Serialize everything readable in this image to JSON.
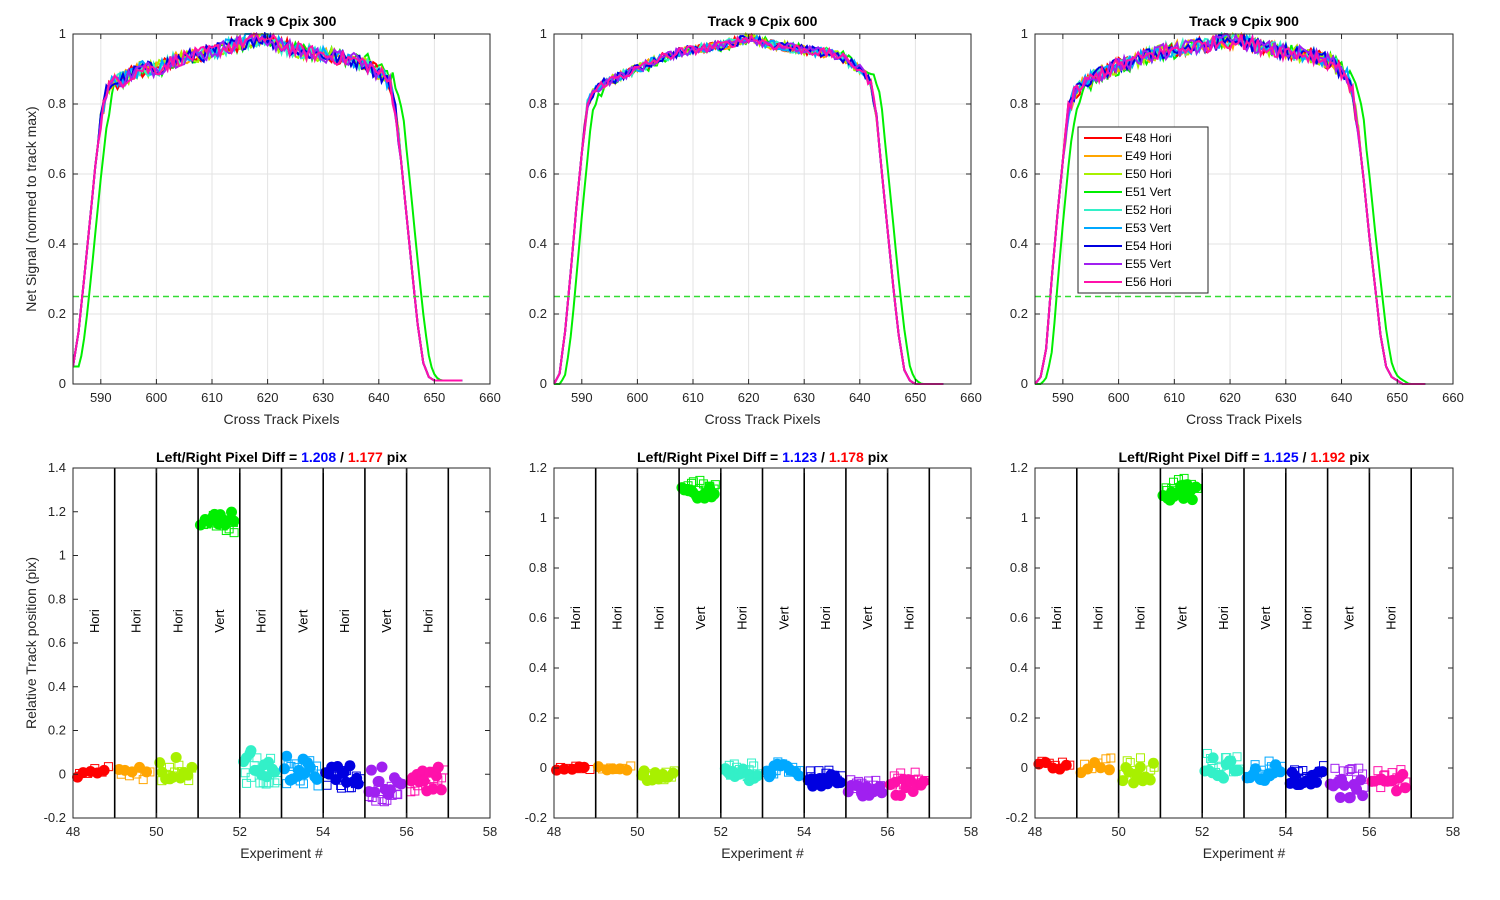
{
  "colors": {
    "E48": "#ff0000",
    "E49": "#ffa500",
    "E50": "#a8f000",
    "E51": "#00ee00",
    "E52": "#33f0c8",
    "E53": "#00a8ff",
    "E54": "#0000e0",
    "E55": "#a020f0",
    "E56": "#ff11aa",
    "threshold": "#33dd33",
    "diff_left": "#0000ff",
    "diff_right": "#ff0000"
  },
  "legend": {
    "placement": "inside, upper-left of top-right panel",
    "entries": [
      "E48 Hori",
      "E49 Hori",
      "E50 Hori",
      "E51 Vert",
      "E52 Hori",
      "E53 Vert",
      "E54 Hori",
      "E55 Vert",
      "E56 Hori"
    ]
  },
  "chart_data": [
    {
      "type": "line",
      "panel": "profile-1",
      "title": "Track 9  Cpix 300",
      "xlabel": "Cross Track Pixels",
      "ylabel": "Net Signal (normed to track max)",
      "xlim": [
        585,
        660
      ],
      "ylim": [
        0,
        1
      ],
      "xticks": [
        590,
        600,
        610,
        620,
        630,
        640,
        650,
        660
      ],
      "yticks": [
        0,
        0.2,
        0.4,
        0.6,
        0.8,
        1
      ],
      "yticklabels": [
        "0",
        "0.2",
        "0.4",
        "0.6",
        "0.8",
        "1"
      ],
      "grid": true,
      "threshold": 0.25,
      "profile": {
        "x": [
          585,
          586,
          587,
          588,
          589,
          590,
          591,
          592,
          594,
          597,
          600,
          604,
          608,
          612,
          616,
          619,
          622,
          626,
          630,
          634,
          637,
          640,
          642,
          643,
          644,
          645,
          646,
          647,
          648,
          649,
          650,
          651,
          655
        ],
        "y": [
          0.05,
          0.15,
          0.3,
          0.46,
          0.62,
          0.75,
          0.84,
          0.86,
          0.87,
          0.9,
          0.9,
          0.93,
          0.94,
          0.96,
          0.98,
          0.99,
          0.97,
          0.95,
          0.94,
          0.93,
          0.92,
          0.89,
          0.86,
          0.78,
          0.64,
          0.48,
          0.32,
          0.17,
          0.06,
          0.02,
          0.01,
          0.01,
          0.01
        ]
      },
      "outlier_series": "E51 Vert",
      "outlier_shift": 1.2,
      "annotation": {
        "prefix": "Left/Right Pixel Diff = ",
        "left": "1.208",
        "sep": " / ",
        "right": "1.177",
        "suffix": " pix"
      }
    },
    {
      "type": "line",
      "panel": "profile-2",
      "title": "Track 9  Cpix 600",
      "xlabel": "Cross Track Pixels",
      "ylabel": "",
      "xlim": [
        585,
        660
      ],
      "ylim": [
        0,
        1
      ],
      "xticks": [
        590,
        600,
        610,
        620,
        630,
        640,
        650,
        660
      ],
      "yticks": [
        0,
        0.2,
        0.4,
        0.6,
        0.8,
        1
      ],
      "yticklabels": [
        "0",
        "0.2",
        "0.4",
        "0.6",
        "0.8",
        "1"
      ],
      "grid": true,
      "threshold": 0.25,
      "profile": {
        "x": [
          585,
          586,
          587,
          588,
          589,
          590,
          591,
          592,
          594,
          597,
          600,
          604,
          608,
          612,
          616,
          620,
          624,
          628,
          632,
          636,
          640,
          642,
          643,
          644,
          645,
          646,
          647,
          648,
          649,
          650,
          655
        ],
        "y": [
          0.0,
          0.03,
          0.15,
          0.32,
          0.5,
          0.66,
          0.8,
          0.83,
          0.86,
          0.88,
          0.9,
          0.93,
          0.95,
          0.96,
          0.97,
          0.99,
          0.97,
          0.96,
          0.95,
          0.94,
          0.9,
          0.86,
          0.76,
          0.6,
          0.44,
          0.28,
          0.14,
          0.04,
          0.01,
          0.0,
          0.0
        ]
      },
      "outlier_series": "E51 Vert",
      "outlier_shift": 1.12,
      "annotation": {
        "prefix": "Left/Right Pixel Diff = ",
        "left": "1.123",
        "sep": " / ",
        "right": "1.178",
        "suffix": " pix"
      }
    },
    {
      "type": "line",
      "panel": "profile-3",
      "title": "Track 9  Cpix 900",
      "xlabel": "Cross Track Pixels",
      "ylabel": "",
      "xlim": [
        585,
        660
      ],
      "ylim": [
        0,
        1
      ],
      "xticks": [
        590,
        600,
        610,
        620,
        630,
        640,
        650,
        660
      ],
      "yticks": [
        0,
        0.2,
        0.4,
        0.6,
        0.8,
        1
      ],
      "yticklabels": [
        "0",
        "0.2",
        "0.4",
        "0.6",
        "0.8",
        "1"
      ],
      "grid": true,
      "threshold": 0.25,
      "profile": {
        "x": [
          585,
          586,
          587,
          588,
          589,
          590,
          591,
          592,
          594,
          597,
          600,
          604,
          608,
          612,
          616,
          619,
          622,
          626,
          630,
          634,
          638,
          641,
          642,
          643,
          644,
          645,
          646,
          647,
          648,
          649,
          650,
          651,
          655
        ],
        "y": [
          0.0,
          0.02,
          0.1,
          0.3,
          0.48,
          0.64,
          0.78,
          0.83,
          0.86,
          0.89,
          0.91,
          0.93,
          0.95,
          0.96,
          0.97,
          0.98,
          0.98,
          0.96,
          0.95,
          0.94,
          0.92,
          0.88,
          0.83,
          0.72,
          0.58,
          0.42,
          0.28,
          0.14,
          0.05,
          0.02,
          0.01,
          0.0,
          0.0
        ]
      },
      "outlier_series": "E51 Vert",
      "outlier_shift": 1.12,
      "annotation": {
        "prefix": "Left/Right Pixel Diff = ",
        "left": "1.125",
        "sep": " / ",
        "right": "1.192",
        "suffix": " pix"
      }
    },
    {
      "type": "scatter",
      "panel": "position-1",
      "title": "",
      "xlabel": "Experiment #",
      "ylabel": "Relative Track position (pix)",
      "xlim": [
        48,
        58
      ],
      "ylim": [
        -0.2,
        1.4
      ],
      "xticks": [
        48,
        50,
        52,
        54,
        56,
        58
      ],
      "yticks": [
        -0.2,
        0,
        0.2,
        0.4,
        0.6,
        0.8,
        1,
        1.2,
        1.4
      ],
      "yticklabels": [
        "-0.2",
        "0",
        "0.2",
        "0.4",
        "0.6",
        "0.8",
        "1",
        "1.2",
        "1.4"
      ],
      "separators": [
        49,
        50,
        51,
        52,
        53,
        54,
        55,
        56,
        57
      ],
      "orientation_labels": [
        "Hori",
        "Hori",
        "Hori",
        "Vert",
        "Hori",
        "Vert",
        "Hori",
        "Vert",
        "Hori"
      ],
      "orientation_label_y": 0.7,
      "groups": [
        {
          "series": "E48",
          "x_start": 48.0,
          "centers": [
            0.0,
            0.02
          ],
          "spread": 0.04,
          "count": 10
        },
        {
          "series": "E49",
          "x_start": 49.0,
          "centers": [
            0.03,
            0.0
          ],
          "spread": 0.06,
          "count": 10
        },
        {
          "series": "E50",
          "x_start": 50.0,
          "centers": [
            0.02,
            -0.01
          ],
          "spread": 0.12,
          "count": 20
        },
        {
          "series": "E51",
          "x_start": 51.0,
          "centers": [
            1.16,
            1.14
          ],
          "spread": 0.09,
          "count": 26
        },
        {
          "series": "E52",
          "x_start": 52.0,
          "centers": [
            0.05,
            0.02
          ],
          "spread": 0.13,
          "count": 24
        },
        {
          "series": "E53",
          "x_start": 53.0,
          "centers": [
            0.03,
            0.0
          ],
          "spread": 0.13,
          "count": 24
        },
        {
          "series": "E54",
          "x_start": 54.0,
          "centers": [
            0.0,
            -0.03
          ],
          "spread": 0.1,
          "count": 24
        },
        {
          "series": "E55",
          "x_start": 55.0,
          "centers": [
            -0.03,
            -0.07
          ],
          "spread": 0.14,
          "count": 24
        },
        {
          "series": "E56",
          "x_start": 56.0,
          "centers": [
            -0.02,
            -0.04
          ],
          "spread": 0.12,
          "count": 24
        }
      ]
    },
    {
      "type": "scatter",
      "panel": "position-2",
      "title": "",
      "xlabel": "Experiment #",
      "ylabel": "",
      "xlim": [
        48,
        58
      ],
      "ylim": [
        -0.2,
        1.2
      ],
      "xticks": [
        48,
        50,
        52,
        54,
        56,
        58
      ],
      "yticks": [
        -0.2,
        0,
        0.2,
        0.4,
        0.6,
        0.8,
        1,
        1.2
      ],
      "yticklabels": [
        "-0.2",
        "0",
        "0.2",
        "0.4",
        "0.6",
        "0.8",
        "1",
        "1.2"
      ],
      "separators": [
        49,
        50,
        51,
        52,
        53,
        54,
        55,
        56,
        57
      ],
      "orientation_labels": [
        "Hori",
        "Hori",
        "Hori",
        "Vert",
        "Hori",
        "Vert",
        "Hori",
        "Vert",
        "Hori"
      ],
      "orientation_label_y": 0.6,
      "groups": [
        {
          "series": "E48",
          "x_start": 48.0,
          "centers": [
            0.0,
            0.0
          ],
          "spread": 0.02,
          "count": 10
        },
        {
          "series": "E49",
          "x_start": 49.0,
          "centers": [
            0.0,
            0.0
          ],
          "spread": 0.02,
          "count": 10
        },
        {
          "series": "E50",
          "x_start": 50.0,
          "centers": [
            -0.03,
            -0.03
          ],
          "spread": 0.04,
          "count": 20
        },
        {
          "series": "E51",
          "x_start": 51.0,
          "centers": [
            1.1,
            1.13
          ],
          "spread": 0.05,
          "count": 26
        },
        {
          "series": "E52",
          "x_start": 52.0,
          "centers": [
            -0.03,
            -0.01
          ],
          "spread": 0.06,
          "count": 24
        },
        {
          "series": "E53",
          "x_start": 53.0,
          "centers": [
            -0.01,
            0.0
          ],
          "spread": 0.05,
          "count": 24
        },
        {
          "series": "E54",
          "x_start": 54.0,
          "centers": [
            -0.05,
            -0.03
          ],
          "spread": 0.05,
          "count": 24
        },
        {
          "series": "E55",
          "x_start": 55.0,
          "centers": [
            -0.09,
            -0.07
          ],
          "spread": 0.05,
          "count": 24
        },
        {
          "series": "E56",
          "x_start": 56.0,
          "centers": [
            -0.08,
            -0.05
          ],
          "spread": 0.07,
          "count": 24
        }
      ]
    },
    {
      "type": "scatter",
      "panel": "position-3",
      "title": "",
      "xlabel": "Experiment #",
      "ylabel": "",
      "xlim": [
        48,
        58
      ],
      "ylim": [
        -0.2,
        1.2
      ],
      "xticks": [
        48,
        50,
        52,
        54,
        56,
        58
      ],
      "yticks": [
        -0.2,
        0,
        0.2,
        0.4,
        0.6,
        0.8,
        1,
        1.2
      ],
      "yticklabels": [
        "-0.2",
        "0",
        "0.2",
        "0.4",
        "0.6",
        "0.8",
        "1",
        "1.2"
      ],
      "separators": [
        49,
        50,
        51,
        52,
        53,
        54,
        55,
        56,
        57
      ],
      "orientation_labels": [
        "Hori",
        "Hori",
        "Hori",
        "Vert",
        "Hori",
        "Vert",
        "Hori",
        "Vert",
        "Hori"
      ],
      "orientation_label_y": 0.6,
      "groups": [
        {
          "series": "E48",
          "x_start": 48.0,
          "centers": [
            0.01,
            0.02
          ],
          "spread": 0.03,
          "count": 10
        },
        {
          "series": "E49",
          "x_start": 49.0,
          "centers": [
            0.0,
            0.02
          ],
          "spread": 0.05,
          "count": 10
        },
        {
          "series": "E50",
          "x_start": 50.0,
          "centers": [
            -0.02,
            0.0
          ],
          "spread": 0.09,
          "count": 20
        },
        {
          "series": "E51",
          "x_start": 51.0,
          "centers": [
            1.1,
            1.13
          ],
          "spread": 0.07,
          "count": 26
        },
        {
          "series": "E52",
          "x_start": 52.0,
          "centers": [
            0.0,
            0.02
          ],
          "spread": 0.09,
          "count": 24
        },
        {
          "series": "E53",
          "x_start": 53.0,
          "centers": [
            -0.02,
            0.0
          ],
          "spread": 0.07,
          "count": 24
        },
        {
          "series": "E54",
          "x_start": 54.0,
          "centers": [
            -0.04,
            -0.02
          ],
          "spread": 0.06,
          "count": 24
        },
        {
          "series": "E55",
          "x_start": 55.0,
          "centers": [
            -0.08,
            -0.04
          ],
          "spread": 0.08,
          "count": 24
        },
        {
          "series": "E56",
          "x_start": 56.0,
          "centers": [
            -0.06,
            -0.04
          ],
          "spread": 0.08,
          "count": 24
        }
      ]
    }
  ]
}
